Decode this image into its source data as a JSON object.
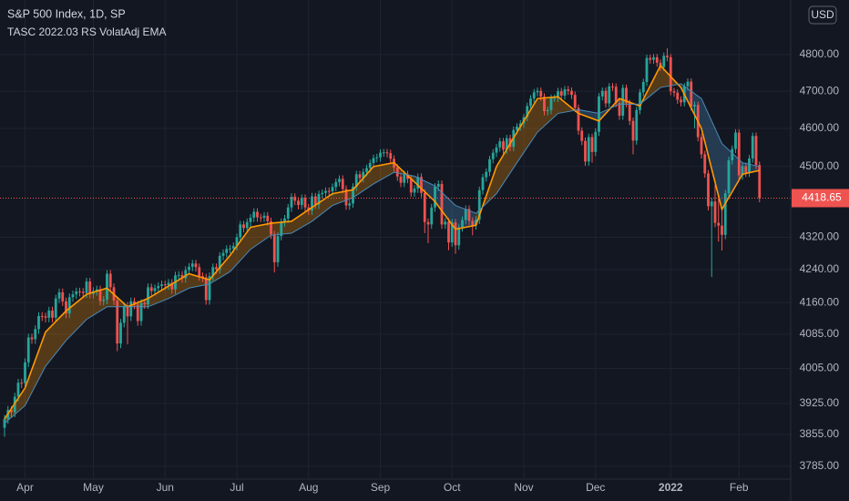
{
  "chart_data": {
    "type": "candlestick",
    "title": "S&P 500 Index, 1D, SP",
    "subtitle": "TASC 2022.03 RS VolatAdj EMA",
    "currency": "USD",
    "up_color": "#26a69a",
    "down_color": "#ef5350",
    "log_scale": true,
    "grid": true,
    "ylim": [
      3759,
      4954
    ],
    "yticks": [
      {
        "value": 3785,
        "label": "3785.00"
      },
      {
        "value": 3855,
        "label": "3855.00"
      },
      {
        "value": 3925,
        "label": "3925.00"
      },
      {
        "value": 4005,
        "label": "4005.00"
      },
      {
        "value": 4085,
        "label": "4085.00"
      },
      {
        "value": 4160,
        "label": "4160.00"
      },
      {
        "value": 4240,
        "label": "4240.00"
      },
      {
        "value": 4320,
        "label": "4320.00"
      },
      {
        "value": 4500,
        "label": "4500.00"
      },
      {
        "value": 4600,
        "label": "4600.00"
      },
      {
        "value": 4700,
        "label": "4700.00"
      },
      {
        "value": 4800,
        "label": "4800.00"
      }
    ],
    "xticks": [
      {
        "value": 6,
        "label": "Apr"
      },
      {
        "value": 26,
        "label": "May"
      },
      {
        "value": 47,
        "label": "Jun"
      },
      {
        "value": 68,
        "label": "Jul"
      },
      {
        "value": 89,
        "label": "Aug"
      },
      {
        "value": 110,
        "label": "Sep"
      },
      {
        "value": 131,
        "label": "Oct"
      },
      {
        "value": 152,
        "label": "Nov"
      },
      {
        "value": 173,
        "label": "Dec"
      },
      {
        "value": 195,
        "label": "2022"
      },
      {
        "value": 215,
        "label": "Feb"
      }
    ],
    "open": [
      3870,
      3890,
      3910,
      3905,
      3940,
      3972,
      3971,
      4019,
      4077,
      4073,
      4097,
      4128,
      4127,
      4124,
      4141,
      4124,
      4170,
      4185,
      4163,
      4134,
      4173,
      4180,
      4187,
      4186,
      4183,
      4211,
      4181,
      4188,
      4192,
      4164,
      4167,
      4230,
      4197,
      4165,
      4063,
      4112,
      4152,
      4127,
      4163,
      4155,
      4116,
      4159,
      4156,
      4197,
      4188,
      4195,
      4200,
      4204,
      4202,
      4208,
      4192,
      4226,
      4227,
      4219,
      4239,
      4247,
      4255,
      4246,
      4224,
      4221,
      4166,
      4224,
      4246,
      4241,
      4274,
      4281,
      4291,
      4292,
      4298,
      4320,
      4352,
      4343,
      4358,
      4369,
      4384,
      4370,
      4369,
      4374,
      4360,
      4327,
      4258,
      4323,
      4358,
      4367,
      4395,
      4422,
      4412,
      4401,
      4419,
      4395,
      4387,
      4423,
      4402,
      4429,
      4432,
      4437,
      4436,
      4447,
      4460,
      4468,
      4442,
      4400,
      4405,
      4448,
      4480,
      4470,
      4486,
      4496,
      4509,
      4522,
      4524,
      4536,
      4537,
      4535,
      4520,
      4497,
      4474,
      4458,
      4480,
      4468,
      4433,
      4443,
      4473,
      4432,
      4358,
      4352,
      4395,
      4448,
      4455,
      4352,
      4359,
      4307,
      4357,
      4300,
      4345,
      4363,
      4391,
      4361,
      4350,
      4364,
      4439,
      4472,
      4486,
      4519,
      4536,
      4550,
      4566,
      4544,
      4574,
      4551,
      4596,
      4605,
      4613,
      4630,
      4660,
      4680,
      4697,
      4701,
      4685,
      4646,
      4649,
      4682,
      4682,
      4700,
      4688,
      4705,
      4701,
      4690,
      4655,
      4594,
      4567,
      4513,
      4577,
      4538,
      4591,
      4686,
      4701,
      4667,
      4713,
      4712,
      4668,
      4634,
      4709,
      4668,
      4620,
      4568,
      4649,
      4697,
      4725,
      4791,
      4786,
      4793,
      4778,
      4766,
      4797,
      4793,
      4700,
      4696,
      4677,
      4670,
      4713,
      4726,
      4659,
      4663,
      4577,
      4532,
      4482,
      4398,
      4410,
      4356,
      4349,
      4326,
      4431,
      4516,
      4546,
      4589,
      4477,
      4501,
      4484,
      4521,
      4580,
      4504
    ],
    "high": [
      3899,
      3919,
      3919,
      3949,
      3981,
      3981,
      4028,
      4086,
      4086,
      4106,
      4137,
      4137,
      4136,
      4150,
      4150,
      4179,
      4194,
      4194,
      4172,
      4182,
      4189,
      4196,
      4196,
      4195,
      4220,
      4220,
      4197,
      4201,
      4201,
      4176,
      4239,
      4239,
      4206,
      4174,
      4121,
      4161,
      4161,
      4172,
      4172,
      4164,
      4168,
      4168,
      4206,
      4206,
      4204,
      4209,
      4213,
      4213,
      4217,
      4217,
      4235,
      4236,
      4236,
      4248,
      4256,
      4264,
      4264,
      4255,
      4233,
      4230,
      4233,
      4255,
      4255,
      4283,
      4290,
      4300,
      4301,
      4307,
      4329,
      4361,
      4361,
      4367,
      4378,
      4393,
      4393,
      4379,
      4383,
      4383,
      4369,
      4336,
      4332,
      4367,
      4376,
      4404,
      4431,
      4431,
      4421,
      4428,
      4428,
      4404,
      4432,
      4432,
      4438,
      4441,
      4446,
      4446,
      4456,
      4469,
      4477,
      4477,
      4451,
      4414,
      4457,
      4489,
      4489,
      4495,
      4505,
      4518,
      4531,
      4533,
      4545,
      4546,
      4546,
      4544,
      4529,
      4506,
      4483,
      4489,
      4489,
      4477,
      4452,
      4482,
      4482,
      4441,
      4367,
      4404,
      4457,
      4464,
      4464,
      4368,
      4368,
      4366,
      4366,
      4354,
      4372,
      4400,
      4400,
      4370,
      4373,
      4448,
      4481,
      4495,
      4528,
      4545,
      4559,
      4575,
      4575,
      4583,
      4583,
      4605,
      4614,
      4622,
      4639,
      4669,
      4689,
      4706,
      4710,
      4710,
      4694,
      4658,
      4691,
      4691,
      4709,
      4709,
      4714,
      4714,
      4710,
      4699,
      4664,
      4603,
      4576,
      4586,
      4586,
      4600,
      4695,
      4710,
      4710,
      4722,
      4722,
      4721,
      4677,
      4718,
      4718,
      4677,
      4629,
      4658,
      4706,
      4734,
      4800,
      4800,
      4802,
      4802,
      4787,
      4806,
      4818,
      4802,
      4709,
      4705,
      4686,
      4722,
      4735,
      4735,
      4672,
      4672,
      4586,
      4541,
      4491,
      4419,
      4453,
      4428,
      4393,
      4440,
      4525,
      4555,
      4598,
      4598,
      4510,
      4510,
      4530,
      4589,
      4589,
      4513
    ],
    "low": [
      3850,
      3879,
      3894,
      3894,
      3929,
      3960,
      3960,
      4008,
      4062,
      4062,
      4086,
      4116,
      4113,
      4113,
      4113,
      4113,
      4159,
      4152,
      4123,
      4123,
      4162,
      4169,
      4175,
      4172,
      4172,
      4170,
      4170,
      4177,
      4153,
      4153,
      4156,
      4186,
      4154,
      4045,
      4052,
      4101,
      4061,
      4116,
      4144,
      4105,
      4105,
      4145,
      4145,
      4177,
      4177,
      4184,
      4189,
      4191,
      4191,
      4181,
      4181,
      4215,
      4208,
      4208,
      4228,
      4236,
      4235,
      4213,
      4210,
      4155,
      4155,
      4213,
      4230,
      4230,
      4263,
      4270,
      4280,
      4281,
      4287,
      4309,
      4332,
      4332,
      4347,
      4358,
      4359,
      4358,
      4358,
      4349,
      4316,
      4233,
      4247,
      4312,
      4347,
      4356,
      4384,
      4401,
      4390,
      4390,
      4384,
      4376,
      4376,
      4391,
      4391,
      4418,
      4421,
      4425,
      4425,
      4436,
      4449,
      4431,
      4389,
      4389,
      4394,
      4437,
      4459,
      4459,
      4475,
      4485,
      4498,
      4511,
      4513,
      4525,
      4524,
      4509,
      4486,
      4463,
      4447,
      4447,
      4457,
      4422,
      4422,
      4432,
      4421,
      4330,
      4305,
      4341,
      4384,
      4437,
      4341,
      4341,
      4288,
      4296,
      4279,
      4289,
      4334,
      4352,
      4350,
      4325,
      4339,
      4353,
      4428,
      4461,
      4475,
      4508,
      4525,
      4539,
      4533,
      4533,
      4540,
      4540,
      4585,
      4594,
      4602,
      4619,
      4649,
      4669,
      4686,
      4674,
      4635,
      4635,
      4638,
      4671,
      4671,
      4677,
      4677,
      4690,
      4679,
      4644,
      4583,
      4556,
      4502,
      4502,
      4510,
      4527,
      4580,
      4675,
      4656,
      4656,
      4701,
      4657,
      4623,
      4623,
      4657,
      4609,
      4532,
      4557,
      4638,
      4686,
      4714,
      4775,
      4775,
      4767,
      4755,
      4755,
      4782,
      4689,
      4685,
      4666,
      4659,
      4659,
      4702,
      4648,
      4600,
      4566,
      4521,
      4471,
      4387,
      4222,
      4345,
      4309,
      4287,
      4315,
      4420,
      4505,
      4535,
      4466,
      4466,
      4473,
      4473,
      4510,
      4493,
      4408
    ],
    "close": [
      3890,
      3910,
      3905,
      3940,
      3972,
      3971,
      4019,
      4077,
      4073,
      4097,
      4128,
      4127,
      4124,
      4141,
      4124,
      4170,
      4185,
      4163,
      4134,
      4173,
      4180,
      4187,
      4186,
      4183,
      4211,
      4181,
      4188,
      4192,
      4164,
      4167,
      4230,
      4197,
      4165,
      4063,
      4112,
      4152,
      4127,
      4163,
      4155,
      4116,
      4159,
      4156,
      4197,
      4188,
      4195,
      4200,
      4204,
      4202,
      4208,
      4192,
      4226,
      4227,
      4219,
      4239,
      4247,
      4255,
      4246,
      4224,
      4221,
      4166,
      4224,
      4246,
      4241,
      4274,
      4281,
      4291,
      4292,
      4298,
      4320,
      4352,
      4343,
      4358,
      4369,
      4384,
      4370,
      4369,
      4374,
      4360,
      4327,
      4258,
      4323,
      4358,
      4367,
      4395,
      4422,
      4412,
      4401,
      4419,
      4395,
      4387,
      4423,
      4402,
      4429,
      4432,
      4437,
      4436,
      4447,
      4460,
      4468,
      4442,
      4400,
      4405,
      4448,
      4480,
      4470,
      4486,
      4496,
      4509,
      4522,
      4524,
      4536,
      4537,
      4535,
      4520,
      4497,
      4474,
      4458,
      4480,
      4468,
      4433,
      4443,
      4473,
      4432,
      4358,
      4352,
      4395,
      4448,
      4455,
      4352,
      4359,
      4307,
      4357,
      4300,
      4345,
      4363,
      4391,
      4361,
      4350,
      4364,
      4439,
      4472,
      4486,
      4519,
      4536,
      4550,
      4566,
      4544,
      4574,
      4551,
      4596,
      4605,
      4613,
      4630,
      4660,
      4680,
      4697,
      4701,
      4685,
      4646,
      4649,
      4682,
      4682,
      4700,
      4688,
      4705,
      4701,
      4690,
      4655,
      4594,
      4567,
      4513,
      4577,
      4538,
      4591,
      4686,
      4701,
      4667,
      4713,
      4712,
      4668,
      4634,
      4709,
      4668,
      4620,
      4568,
      4649,
      4697,
      4725,
      4791,
      4786,
      4793,
      4778,
      4766,
      4797,
      4793,
      4700,
      4696,
      4677,
      4670,
      4713,
      4726,
      4659,
      4663,
      4577,
      4532,
      4482,
      4398,
      4410,
      4356,
      4349,
      4326,
      4431,
      4516,
      4546,
      4589,
      4477,
      4501,
      4484,
      4521,
      4580,
      4504,
      4418.65
    ],
    "ema": [
      {
        "color": "#ff9800",
        "x": [
          0,
          6,
          12,
          18,
          24,
          30,
          36,
          42,
          48,
          54,
          60,
          66,
          72,
          78,
          84,
          90,
          96,
          102,
          108,
          114,
          120,
          126,
          132,
          138,
          144,
          150,
          156,
          162,
          168,
          174,
          180,
          186,
          192,
          198,
          204,
          210,
          216,
          221
        ],
        "values": [
          3890,
          3960,
          4090,
          4140,
          4180,
          4195,
          4150,
          4170,
          4200,
          4230,
          4215,
          4275,
          4345,
          4355,
          4360,
          4395,
          4430,
          4440,
          4500,
          4510,
          4460,
          4410,
          4340,
          4350,
          4500,
          4590,
          4680,
          4685,
          4640,
          4620,
          4680,
          4660,
          4770,
          4710,
          4600,
          4390,
          4480,
          4490
        ]
      },
      {
        "color": "#4a8ab8",
        "x": [
          0,
          6,
          12,
          18,
          24,
          30,
          36,
          42,
          48,
          54,
          60,
          66,
          72,
          78,
          84,
          90,
          96,
          102,
          108,
          114,
          120,
          126,
          132,
          138,
          144,
          150,
          156,
          162,
          168,
          174,
          180,
          186,
          192,
          198,
          204,
          210,
          216,
          221
        ],
        "values": [
          3880,
          3920,
          4010,
          4070,
          4120,
          4150,
          4150,
          4150,
          4170,
          4195,
          4205,
          4235,
          4290,
          4325,
          4330,
          4360,
          4400,
          4420,
          4455,
          4485,
          4475,
          4450,
          4400,
          4380,
          4430,
          4510,
          4590,
          4640,
          4650,
          4640,
          4665,
          4665,
          4710,
          4720,
          4680,
          4560,
          4510,
          4500
        ]
      }
    ]
  }
}
